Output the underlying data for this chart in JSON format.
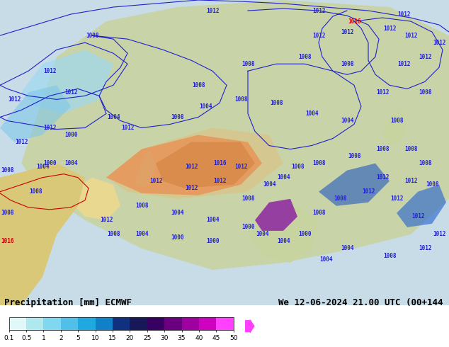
{
  "title_left": "Precipitation [mm] ECMWF",
  "title_right": "We 12-06-2024 21.00 UTC (00+144",
  "colorbar_values": [
    0.1,
    0.5,
    1,
    2,
    5,
    10,
    15,
    20,
    25,
    30,
    35,
    40,
    45,
    50
  ],
  "colorbar_colors": [
    "#e0f8f8",
    "#b0e8f0",
    "#80d8f0",
    "#50c0e8",
    "#20a8e0",
    "#1080c8",
    "#0858a8",
    "#103080",
    "#181858",
    "#380060",
    "#6a0080",
    "#a000a0",
    "#d000c0",
    "#ff00ff",
    "#ff40ff"
  ],
  "bg_color": "#ffffff",
  "text_color": "#000000",
  "title_fontsize": 9,
  "colorbar_label_fontsize": 7,
  "fig_width": 6.34,
  "fig_height": 4.9,
  "map_bg_colors": {
    "ocean": "#c8e8f8",
    "land_low": "#d8e8c0",
    "land_high": "#c8b870",
    "mountain": "#b09060"
  }
}
